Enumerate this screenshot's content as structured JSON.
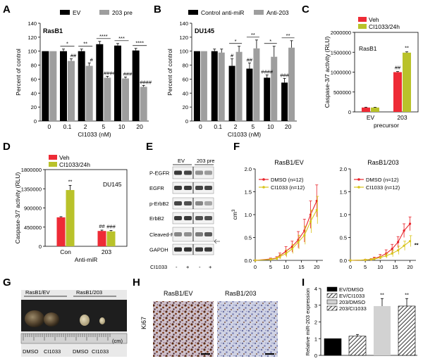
{
  "panels": {
    "A": {
      "label": "A"
    },
    "B": {
      "label": "B"
    },
    "C": {
      "label": "C"
    },
    "D": {
      "label": "D"
    },
    "E": {
      "label": "E"
    },
    "F": {
      "label": "F"
    },
    "G": {
      "label": "G"
    },
    "H": {
      "label": "H"
    },
    "I": {
      "label": "I"
    }
  },
  "chart_data": [
    {
      "id": "A",
      "type": "bar",
      "inner_label": "RasB1",
      "categories": [
        "0",
        "0.1",
        "2",
        "5",
        "10",
        "20"
      ],
      "xlabel": "CI1033 (nM)",
      "ylabel": "Percent of control",
      "ylim": [
        0,
        140
      ],
      "yticks": [
        "0",
        "20",
        "40",
        "60",
        "80",
        "100",
        "120",
        "140"
      ],
      "legend": [
        "EV",
        "203 pre"
      ],
      "series": [
        {
          "name": "EV",
          "color": "#000000",
          "values": [
            100,
            100,
            100,
            110,
            108,
            101
          ],
          "err": [
            0,
            3,
            3,
            4,
            3,
            3
          ]
        },
        {
          "name": "203 pre",
          "color": "#9e9e9e",
          "values": [
            100,
            86,
            79,
            62,
            61,
            49
          ],
          "err": [
            0,
            3,
            4,
            2,
            2,
            2
          ]
        }
      ],
      "top_marks": [
        "",
        "*",
        "**",
        "****",
        "***",
        "****"
      ],
      "bar_marks": [
        "",
        "##",
        "#",
        "####",
        "###",
        "####"
      ]
    },
    {
      "id": "B",
      "type": "bar",
      "inner_label": "DU145",
      "categories": [
        "0",
        "0.1",
        "2",
        "5",
        "10",
        "20"
      ],
      "xlabel": "CI1033 (nM)",
      "ylabel": "Percent of control",
      "ylim": [
        0,
        140
      ],
      "yticks": [
        "0",
        "20",
        "40",
        "60",
        "80",
        "100",
        "120",
        "140"
      ],
      "legend": [
        "Control anti-miR",
        "Anti-203"
      ],
      "series": [
        {
          "name": "Control anti-miR",
          "color": "#000000",
          "values": [
            100,
            100,
            79,
            75,
            62,
            55
          ],
          "err": [
            0,
            3,
            10,
            8,
            4,
            6
          ]
        },
        {
          "name": "Anti-203",
          "color": "#9e9e9e",
          "values": [
            100,
            98,
            99,
            104,
            92,
            105
          ],
          "err": [
            0,
            5,
            8,
            12,
            15,
            10
          ]
        }
      ],
      "top_marks": [
        "",
        "",
        "*",
        "**",
        "*",
        "**"
      ],
      "bar_marks": [
        "",
        "",
        "#",
        "##",
        "####",
        "###"
      ]
    },
    {
      "id": "C",
      "type": "bar",
      "inner_label": "RasB1",
      "categories": [
        "EV",
        "203"
      ],
      "xlabel": "precursor",
      "ylabel": "Caspase-3/7 activity (RLU)",
      "ylim": [
        0,
        2000000
      ],
      "yticks": [
        "0",
        "500000",
        "1000000",
        "1500000",
        "2000000"
      ],
      "legend": [
        "Veh",
        "CI1033/24h"
      ],
      "series": [
        {
          "name": "Veh",
          "color": "#ee2b36",
          "values": [
            110000,
            1000000
          ],
          "err": [
            8000,
            15000
          ]
        },
        {
          "name": "CI1033/24h",
          "color": "#b9c22a",
          "values": [
            110000,
            1490000
          ],
          "err": [
            6000,
            20000
          ]
        }
      ],
      "marks": [
        "##",
        "**"
      ]
    },
    {
      "id": "D",
      "type": "bar",
      "inner_label": "DU145",
      "categories": [
        "Con",
        "203"
      ],
      "xlabel": "Anti-miR",
      "ylabel": "Caspase-3/7 activity (RLU)",
      "ylim": [
        0,
        1800000
      ],
      "yticks": [
        "0",
        "450000",
        "900000",
        "1350000",
        "1800000"
      ],
      "legend": [
        "Veh",
        "CI1033/24h"
      ],
      "series": [
        {
          "name": "Veh",
          "color": "#ee2b36",
          "values": [
            680000,
            360000
          ],
          "err": [
            15000,
            20000
          ]
        },
        {
          "name": "CI1033/24h",
          "color": "#b9c22a",
          "values": [
            1320000,
            350000
          ],
          "err": [
            110000,
            20000
          ]
        }
      ],
      "marks": [
        "**",
        "##",
        "###"
      ]
    },
    {
      "id": "F1",
      "type": "line",
      "title": "RasB1/EV",
      "x": [
        0,
        5,
        7,
        8,
        10,
        12,
        14,
        16,
        18,
        20
      ],
      "xticks": [
        "0",
        "5",
        "10",
        "15",
        "20"
      ],
      "ylabel": "cm",
      "ylabel_sup": "3",
      "ylim": [
        0,
        2.0
      ],
      "yticks": [
        "0.0",
        "0.5",
        "1.0",
        "1.5",
        "2.0"
      ],
      "series": [
        {
          "name": "DMSO (n=12)",
          "color": "#e8232a",
          "values": [
            0,
            0.03,
            0.05,
            0.1,
            0.2,
            0.3,
            0.45,
            0.65,
            1.0,
            1.3
          ],
          "err": [
            0,
            0.02,
            0.03,
            0.06,
            0.1,
            0.12,
            0.18,
            0.25,
            0.3,
            0.35
          ]
        },
        {
          "name": "CI1033 (n=12)",
          "color": "#d8c51c",
          "values": [
            0,
            0.02,
            0.04,
            0.08,
            0.15,
            0.25,
            0.4,
            0.55,
            0.85,
            1.1
          ],
          "err": [
            0,
            0.02,
            0.03,
            0.05,
            0.08,
            0.1,
            0.15,
            0.2,
            0.25,
            0.3
          ]
        }
      ]
    },
    {
      "id": "F2",
      "type": "line",
      "title": "RasB1/203",
      "x": [
        0,
        5,
        7,
        8,
        10,
        12,
        14,
        16,
        18,
        20
      ],
      "xticks": [
        "0",
        "5",
        "10",
        "15",
        "20"
      ],
      "ylabel": "",
      "ylim": [
        0,
        2.0
      ],
      "yticks": [
        "0.0",
        "0.5",
        "1.0",
        "1.5",
        "2.0"
      ],
      "series": [
        {
          "name": "DMSO (n=12)",
          "color": "#e8232a",
          "values": [
            0,
            0.01,
            0.02,
            0.04,
            0.08,
            0.15,
            0.25,
            0.4,
            0.65,
            0.8
          ],
          "err": [
            0,
            0.01,
            0.02,
            0.03,
            0.05,
            0.08,
            0.1,
            0.12,
            0.15,
            0.15
          ]
        },
        {
          "name": "CI1033 (n=12)",
          "color": "#d8c51c",
          "values": [
            0,
            0.01,
            0.02,
            0.03,
            0.06,
            0.1,
            0.15,
            0.22,
            0.32,
            0.42
          ],
          "err": [
            0,
            0.01,
            0.01,
            0.02,
            0.03,
            0.05,
            0.07,
            0.09,
            0.1,
            0.12
          ]
        }
      ],
      "mark": "**"
    },
    {
      "id": "I",
      "type": "bar",
      "categories": [
        "EV/DMSO",
        "EV/CI1033",
        "203/DMSO",
        "203/CI1033"
      ],
      "ylabel": "Relative miR-203 expression",
      "ylim": [
        0,
        4
      ],
      "yticks": [
        "0",
        "1",
        "2",
        "3",
        "4"
      ],
      "values": [
        1.0,
        1.15,
        2.95,
        2.95
      ],
      "err": [
        0,
        0.1,
        0.45,
        0.45
      ],
      "marks": [
        "",
        "",
        "**",
        "**"
      ]
    }
  ],
  "western": {
    "groups": [
      "EV",
      "203 pre"
    ],
    "rows": [
      "P-EGFR",
      "EGFR",
      "p-ErbB2",
      "ErbB2",
      "Cleaved-PARP",
      "GAPDH"
    ],
    "drug_label": "CI1033",
    "lanes": [
      "-",
      "+",
      "-",
      "+"
    ]
  },
  "photo": {
    "labels": [
      "RasB1/EV",
      "RasB1/203"
    ],
    "bottom": [
      "DMSO",
      "CI1033",
      "DMSO",
      "CI1033"
    ],
    "unit": "(cm)"
  },
  "ihc": {
    "labels": [
      "RasB1/EV",
      "RasB1/203"
    ],
    "stain": "Ki67"
  }
}
